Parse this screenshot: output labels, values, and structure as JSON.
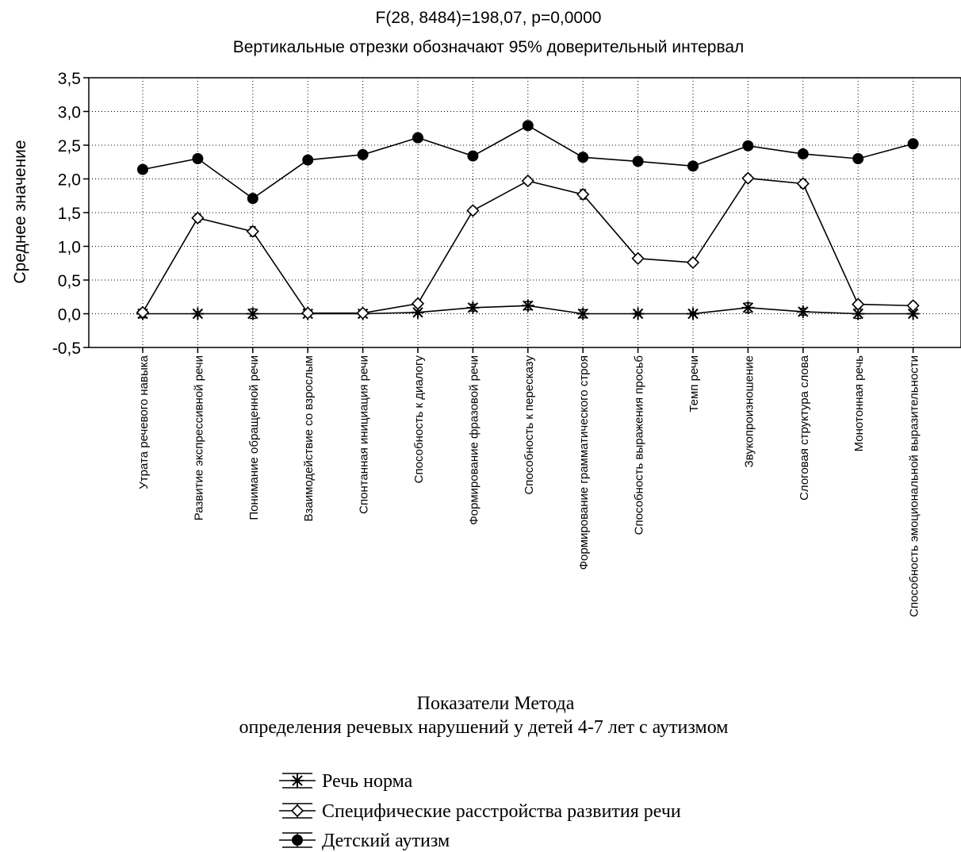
{
  "chart_data": {
    "type": "line",
    "title": "F(28, 8484)=198,07, p=0,0000",
    "subtitle": "Вертикальные отрезки обозначают 95% доверительный интервал",
    "xlabel_line1": "Показатели Метода",
    "xlabel_line2": "определения речевых нарушений у детей 4-7 лет с аутизмом",
    "ylabel": "Среднее значение",
    "ylim": [
      -0.5,
      3.5
    ],
    "yticks": [
      -0.5,
      0.0,
      0.5,
      1.0,
      1.5,
      2.0,
      2.5,
      3.0,
      3.5
    ],
    "ytick_labels": [
      "-0,5",
      "0,0",
      "0,5",
      "1,0",
      "1,5",
      "2,0",
      "2,5",
      "3,0",
      "3,5"
    ],
    "grid": true,
    "legend_position": "bottom-center",
    "categories": [
      "Утрата речевого навыка",
      "Развитие экспрессивной  речи",
      "Понимание обращенной речи",
      "Взаимодействие со взрослым",
      "Спонтанная инициация речи",
      "Способность к диалогу",
      "Формирование фразовой речи",
      "Способность к пересказу",
      "Формирование грамматического строя",
      "Способность выражения просьб",
      "Темп речи",
      "Звукопроизношение",
      "Слоговая структура слова",
      "Монотонная речь",
      "Способность эмоциональной выразительности"
    ],
    "series": [
      {
        "name": "Речь норма",
        "marker": "asterisk",
        "values": [
          0.0,
          0.0,
          0.0,
          0.0,
          0.0,
          0.02,
          0.09,
          0.12,
          0.0,
          0.0,
          0.0,
          0.09,
          0.03,
          0.0,
          0.0
        ],
        "ci": [
          0.06,
          0.03,
          0.07,
          0.02,
          0.02,
          0.03,
          0.05,
          0.06,
          0.06,
          0.02,
          0.02,
          0.07,
          0.05,
          0.07,
          0.03
        ]
      },
      {
        "name": "Специфические расстройства развития речи",
        "marker": "diamond",
        "values": [
          0.02,
          1.42,
          1.22,
          0.01,
          0.01,
          0.15,
          1.53,
          1.97,
          1.77,
          0.82,
          0.76,
          2.01,
          1.93,
          0.14,
          0.12
        ],
        "ci": [
          0.05,
          0.06,
          0.07,
          0.03,
          0.03,
          0.05,
          0.05,
          0.05,
          0.07,
          0.05,
          0.05,
          0.05,
          0.06,
          0.05,
          0.05
        ]
      },
      {
        "name": "Детский аутизм",
        "marker": "filled-circle",
        "values": [
          2.14,
          2.3,
          1.71,
          2.28,
          2.36,
          2.61,
          2.34,
          2.79,
          2.32,
          2.26,
          2.19,
          2.49,
          2.37,
          2.3,
          2.52
        ],
        "ci": [
          0.04,
          0.04,
          0.05,
          0.04,
          0.04,
          0.04,
          0.04,
          0.04,
          0.04,
          0.04,
          0.04,
          0.04,
          0.04,
          0.04,
          0.04
        ]
      }
    ]
  }
}
